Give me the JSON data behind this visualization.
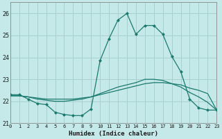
{
  "xlabel": "Humidex (Indice chaleur)",
  "ylabel": "",
  "xlim": [
    0,
    23
  ],
  "ylim": [
    21.0,
    26.5
  ],
  "xticks": [
    0,
    1,
    2,
    3,
    4,
    5,
    6,
    7,
    8,
    9,
    10,
    11,
    12,
    13,
    14,
    15,
    16,
    17,
    18,
    19,
    20,
    21,
    22,
    23
  ],
  "yticks": [
    21,
    22,
    23,
    24,
    25,
    26
  ],
  "background_color": "#c5e8e8",
  "line_color": "#1a7a6e",
  "grid_color": "#a8d0d0",
  "line1_x": [
    0,
    1,
    2,
    3,
    4,
    5,
    6,
    7,
    8,
    9,
    10,
    11,
    12,
    13,
    14,
    15,
    16,
    17,
    18,
    19,
    20,
    21,
    22,
    23
  ],
  "line1_y": [
    22.3,
    22.3,
    22.1,
    21.9,
    21.85,
    21.5,
    21.4,
    21.35,
    21.35,
    21.65,
    23.85,
    24.85,
    25.7,
    26.0,
    25.05,
    25.45,
    25.45,
    25.05,
    24.05,
    23.35,
    22.1,
    21.7,
    21.6,
    21.6
  ],
  "line2_x": [
    0,
    1,
    2,
    3,
    4,
    5,
    6,
    7,
    8,
    9,
    10,
    11,
    12,
    13,
    14,
    15,
    16,
    17,
    18,
    19,
    20,
    21,
    22,
    23
  ],
  "line2_y": [
    22.25,
    22.25,
    22.2,
    22.15,
    22.1,
    22.1,
    22.1,
    22.1,
    22.15,
    22.2,
    22.3,
    22.4,
    22.5,
    22.6,
    22.7,
    22.8,
    22.85,
    22.85,
    22.8,
    22.75,
    22.6,
    22.5,
    22.35,
    21.6
  ],
  "line3_x": [
    0,
    1,
    2,
    3,
    4,
    5,
    6,
    7,
    8,
    9,
    10,
    11,
    12,
    13,
    14,
    15,
    16,
    17,
    18,
    19,
    20,
    21,
    22,
    23
  ],
  "line3_y": [
    22.25,
    22.25,
    22.2,
    22.1,
    22.05,
    22.0,
    22.0,
    22.05,
    22.1,
    22.2,
    22.35,
    22.5,
    22.65,
    22.75,
    22.85,
    23.0,
    23.0,
    22.95,
    22.8,
    22.65,
    22.4,
    22.2,
    21.95,
    21.6
  ]
}
